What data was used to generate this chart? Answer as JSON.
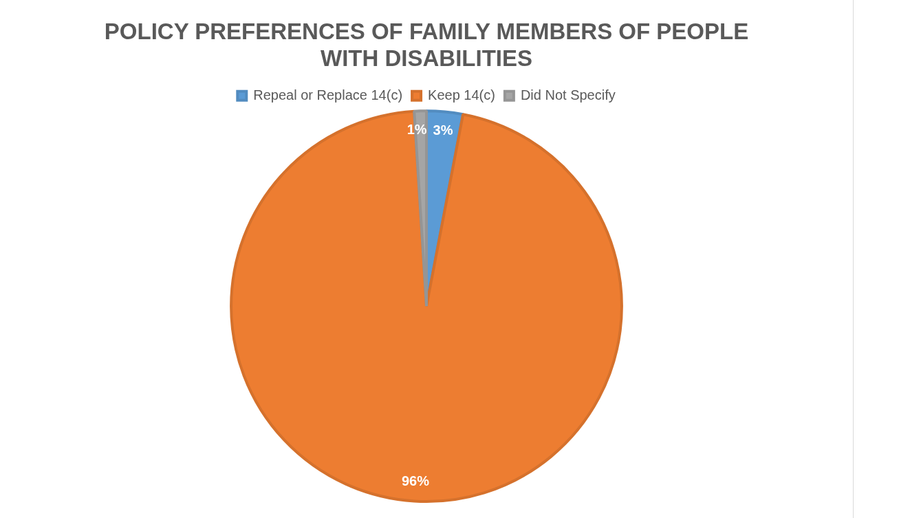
{
  "chart_data": {
    "type": "pie",
    "title": "POLICY PREFERENCES OF FAMILY MEMBERS OF PEOPLE WITH DISABILITIES",
    "categories": [
      "Repeal or Replace 14(c)",
      "Keep 14(c)",
      "Did Not Specify"
    ],
    "values": [
      3,
      96,
      1
    ],
    "colors": [
      "#5b9bd5",
      "#ed7d31",
      "#a5a5a5"
    ],
    "value_labels": [
      "3%",
      "96%",
      "1%"
    ],
    "legend": "top"
  }
}
